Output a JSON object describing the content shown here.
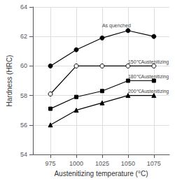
{
  "chart_data": {
    "type": "line",
    "xlabel": "Austenitizing temperature (°C)",
    "ylabel": "Hardness (HRC)",
    "x": [
      975,
      1000,
      1025,
      1050,
      1075
    ],
    "series": [
      {
        "color": "black",
        "marker": "circle",
        "line_style": "solid",
        "values": [
          60.0,
          61.1,
          61.9,
          62.4,
          62.0
        ]
      },
      {
        "color": "black",
        "marker": "open_circle",
        "line_style": "solid",
        "values": [
          58.1,
          60.0,
          60.0,
          60.0,
          60.0
        ]
      },
      {
        "color": "black",
        "marker": "square",
        "line_style": "solid",
        "values": [
          57.1,
          57.9,
          58.3,
          59.0,
          59.0
        ]
      },
      {
        "color": "black",
        "marker": "triangle",
        "line_style": "solid",
        "values": [
          56.0,
          57.0,
          57.5,
          58.0,
          58.0
        ]
      }
    ],
    "annotations": [
      {
        "text": "As quenched",
        "x": 1025,
        "y": 62.6
      },
      {
        "text": "150℃Austenitizing",
        "x": 1050,
        "y": 60.1
      },
      {
        "text": "180℃Austenitizing",
        "x": 1050,
        "y": 59.1
      },
      {
        "text": "200℃Austenitizing",
        "x": 1050,
        "y": 58.1
      }
    ],
    "xlim": [
      958,
      1090
    ],
    "xticks": [
      975,
      1000,
      1025,
      1050,
      1075
    ],
    "ylim": [
      54,
      64
    ],
    "yticks": [
      54,
      56,
      58,
      60,
      62,
      64
    ],
    "grid": true
  }
}
